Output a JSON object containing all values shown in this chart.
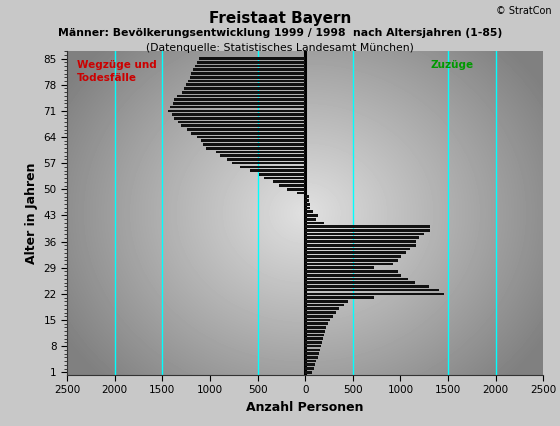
{
  "title1": "Freistaat Bayern",
  "title2": "Männer: Bevölkerungsentwicklung 1999 / 1998  nach Altersjahren (1-85)",
  "title3": "(Datenquelle: Statistisches Landesamt München)",
  "xlabel": "Anzahl Personen",
  "ylabel": "Alter in Jahren",
  "copyright": "© StratCon",
  "label_wegzuege": "Wegzüge und\nTodesfälle",
  "label_zuzuege": "Zuzüge",
  "xlim": [
    -2500,
    2500
  ],
  "xticks": [
    -2500,
    -2000,
    -1500,
    -1000,
    -500,
    0,
    500,
    1000,
    1500,
    2000,
    2500
  ],
  "xtick_labels": [
    "2500",
    "2000",
    "1500",
    "1000",
    "500",
    "0",
    "500",
    "1000",
    "1500",
    "2000",
    "2500"
  ],
  "yticks": [
    1,
    8,
    15,
    22,
    29,
    36,
    43,
    50,
    57,
    64,
    71,
    78,
    85
  ],
  "cyan_lines_x": [
    -2000,
    -1500,
    -500,
    500,
    1500,
    2000
  ],
  "ages": [
    1,
    2,
    3,
    4,
    5,
    6,
    7,
    8,
    9,
    10,
    11,
    12,
    13,
    14,
    15,
    16,
    17,
    18,
    19,
    20,
    21,
    22,
    23,
    24,
    25,
    26,
    27,
    28,
    29,
    30,
    31,
    32,
    33,
    34,
    35,
    36,
    37,
    38,
    39,
    40,
    41,
    42,
    43,
    44,
    45,
    46,
    47,
    48,
    49,
    50,
    51,
    52,
    53,
    54,
    55,
    56,
    57,
    58,
    59,
    60,
    61,
    62,
    63,
    64,
    65,
    66,
    67,
    68,
    69,
    70,
    71,
    72,
    73,
    74,
    75,
    76,
    77,
    78,
    79,
    80,
    81,
    82,
    83,
    84,
    85
  ],
  "values": [
    75,
    90,
    100,
    115,
    130,
    145,
    155,
    165,
    175,
    185,
    195,
    205,
    220,
    240,
    260,
    290,
    320,
    360,
    410,
    450,
    720,
    1460,
    1410,
    1300,
    1150,
    1080,
    1010,
    970,
    720,
    920,
    970,
    1010,
    1060,
    1100,
    1160,
    1160,
    1200,
    1250,
    1310,
    1310,
    200,
    110,
    130,
    80,
    55,
    50,
    40,
    45,
    -90,
    -190,
    -280,
    -340,
    -430,
    -490,
    -580,
    -680,
    -770,
    -820,
    -890,
    -940,
    -1040,
    -1070,
    -1090,
    -1140,
    -1200,
    -1240,
    -1300,
    -1340,
    -1375,
    -1395,
    -1445,
    -1415,
    -1390,
    -1375,
    -1345,
    -1295,
    -1275,
    -1255,
    -1235,
    -1215,
    -1195,
    -1175,
    -1155,
    -1135,
    -1115
  ],
  "bar_color": "#111111",
  "wegzuege_color": "#cc0000",
  "zuzuege_color": "#009900",
  "vline_color": "#000000",
  "cyan_color": "#00ffff"
}
